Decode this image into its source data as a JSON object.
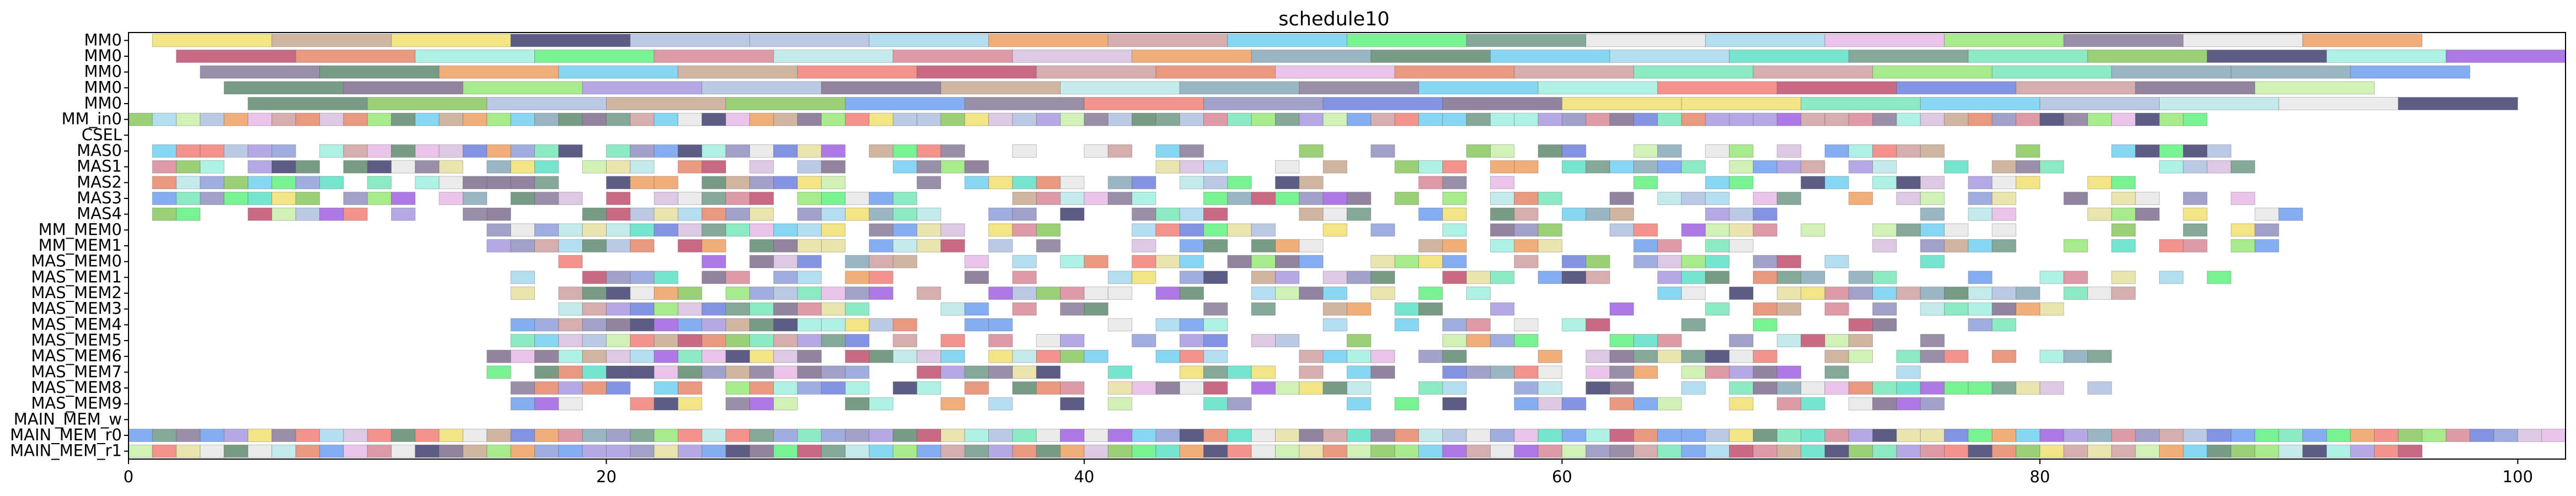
{
  "chart_data": {
    "type": "gantt",
    "title": "schedule10",
    "xlabel": "",
    "ylabel": "",
    "xlim": [
      0,
      102
    ],
    "x_ticks": [
      0,
      20,
      40,
      60,
      80,
      100
    ],
    "grid": false,
    "legend": "none",
    "rows": [
      "MM0",
      "MM0",
      "MM0",
      "MM0",
      "MM0",
      "MM_in0",
      "CSEL",
      "MAS0",
      "MAS1",
      "MAS2",
      "MAS3",
      "MAS4",
      "MM_MEM0",
      "MM_MEM1",
      "MAS_MEM0",
      "MAS_MEM1",
      "MAS_MEM2",
      "MAS_MEM3",
      "MAS_MEM4",
      "MAS_MEM5",
      "MAS_MEM6",
      "MAS_MEM7",
      "MAS_MEM8",
      "MAS_MEM9",
      "MAIN_MEM_w",
      "MAIN_MEM_r0",
      "MAIN_MEM_r1"
    ],
    "row_segments": {
      "MM0_a": {
        "row": 0,
        "start": 1,
        "end": 92,
        "width": 5
      },
      "MM0_b": {
        "row": 1,
        "start": 2,
        "end": 98,
        "width": 5
      },
      "MM0_c": {
        "row": 2,
        "start": 3,
        "end": 96,
        "width": 5
      },
      "MM0_d": {
        "row": 3,
        "start": 4,
        "end": 90,
        "width": 5
      },
      "MM0_e": {
        "row": 4,
        "start": 5,
        "end": 100,
        "width": 5
      },
      "MM_in0": {
        "row": 5,
        "start": 0,
        "end": 87,
        "width": 1
      },
      "MAS0": {
        "row": 7,
        "start": 1,
        "end": 89,
        "width": 1
      },
      "MAS1": {
        "row": 8,
        "start": 1,
        "end": 89,
        "width": 1
      },
      "MAS2": {
        "row": 9,
        "start": 1,
        "end": 86,
        "width": 1
      },
      "MAS3": {
        "row": 10,
        "start": 1,
        "end": 90,
        "width": 1
      },
      "MAS4": {
        "row": 11,
        "start": 1,
        "end": 91,
        "width": 1
      },
      "MM_MEM0": {
        "row": 12,
        "start": 15,
        "end": 90,
        "width": 1
      },
      "MM_MEM1": {
        "row": 13,
        "start": 15,
        "end": 90,
        "width": 1
      },
      "MAS_MEM0": {
        "row": 14,
        "start": 18,
        "end": 76,
        "width": 1
      },
      "MAS_MEM1": {
        "row": 15,
        "start": 16,
        "end": 89,
        "width": 1
      },
      "MAS_MEM2": {
        "row": 16,
        "start": 16,
        "end": 86,
        "width": 1
      },
      "MAS_MEM3": {
        "row": 17,
        "start": 17,
        "end": 85,
        "width": 1
      },
      "MAS_MEM4": {
        "row": 18,
        "start": 16,
        "end": 80,
        "width": 1
      },
      "MAS_MEM5": {
        "row": 19,
        "start": 16,
        "end": 78,
        "width": 1
      },
      "MAS_MEM6": {
        "row": 20,
        "start": 15,
        "end": 83,
        "width": 1
      },
      "MAS_MEM7": {
        "row": 21,
        "start": 15,
        "end": 75,
        "width": 1
      },
      "MAS_MEM8": {
        "row": 22,
        "start": 16,
        "end": 83,
        "width": 1
      },
      "MAS_MEM9": {
        "row": 23,
        "start": 16,
        "end": 77,
        "width": 1
      },
      "MAIN_MEM_r0": {
        "row": 25,
        "start": 0,
        "end": 102,
        "width": 1
      },
      "MAIN_MEM_r1": {
        "row": 26,
        "start": 0,
        "end": 96,
        "width": 1
      }
    },
    "palette": [
      "#7f6f8f",
      "#8fa0d9",
      "#e6e1a1",
      "#e8866a",
      "#a89ae0",
      "#5ee0c8",
      "#a8d8f0",
      "#8a7a9a",
      "#98e878",
      "#b8e8e8",
      "#c8a890",
      "#6f9a88",
      "#d88898",
      "#78e8b8",
      "#88a8b8",
      "#5f8a6f",
      "#a0f0e0",
      "#88c860",
      "#f08078",
      "#c8f0a8",
      "#e8b8e8",
      "#7080e0",
      "#f0e070",
      "#b0c0e0",
      "#d0a0a0",
      "#60f080",
      "#a060e0",
      "#e8e8e8",
      "#70d0f0",
      "#c05070",
      "#f0a060",
      "#9090c0",
      "#d8c0e0",
      "#70a0f0",
      "#404070"
    ]
  }
}
